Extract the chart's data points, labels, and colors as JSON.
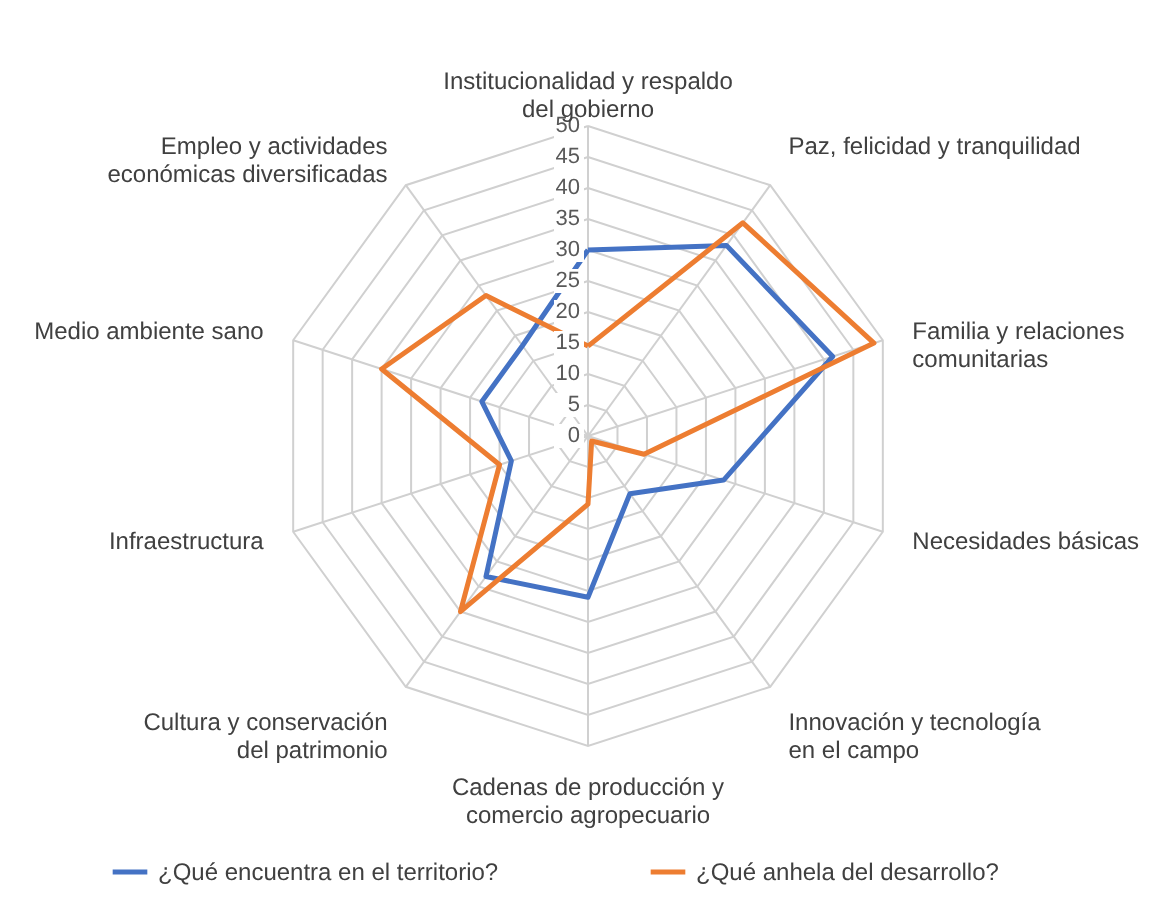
{
  "chart_data": {
    "type": "radar",
    "categories": [
      "Institucionalidad y respaldo\ndel gobierno",
      "Paz, felicidad y tranquilidad",
      "Familia y relaciones\ncomunitarias",
      "Necesidades básicas",
      "Innovación y tecnología\nen el campo",
      "Cadenas de producción y\ncomercio agropecuario",
      "Cultura y conservación\ndel patrimonio",
      "Infraestructura",
      "Medio ambiente sano",
      "Empleo y actividades\neconómicas diversificadas"
    ],
    "series": [
      {
        "name": "¿Qué encuentra en el territorio?",
        "color": "#4472c4",
        "values": [
          30,
          38,
          41.5,
          23,
          11.5,
          26,
          28,
          13,
          18,
          18
        ]
      },
      {
        "name": "¿Qué anhela del desarrollo?",
        "color": "#ed7d31",
        "values": [
          14.5,
          42.5,
          48.5,
          9.5,
          1,
          11,
          35,
          15,
          35,
          28
        ]
      }
    ],
    "ylim": [
      0,
      50
    ],
    "yticks": [
      0,
      5,
      10,
      15,
      20,
      25,
      30,
      35,
      40,
      45,
      50
    ],
    "grid": true,
    "legend": "bottom"
  }
}
